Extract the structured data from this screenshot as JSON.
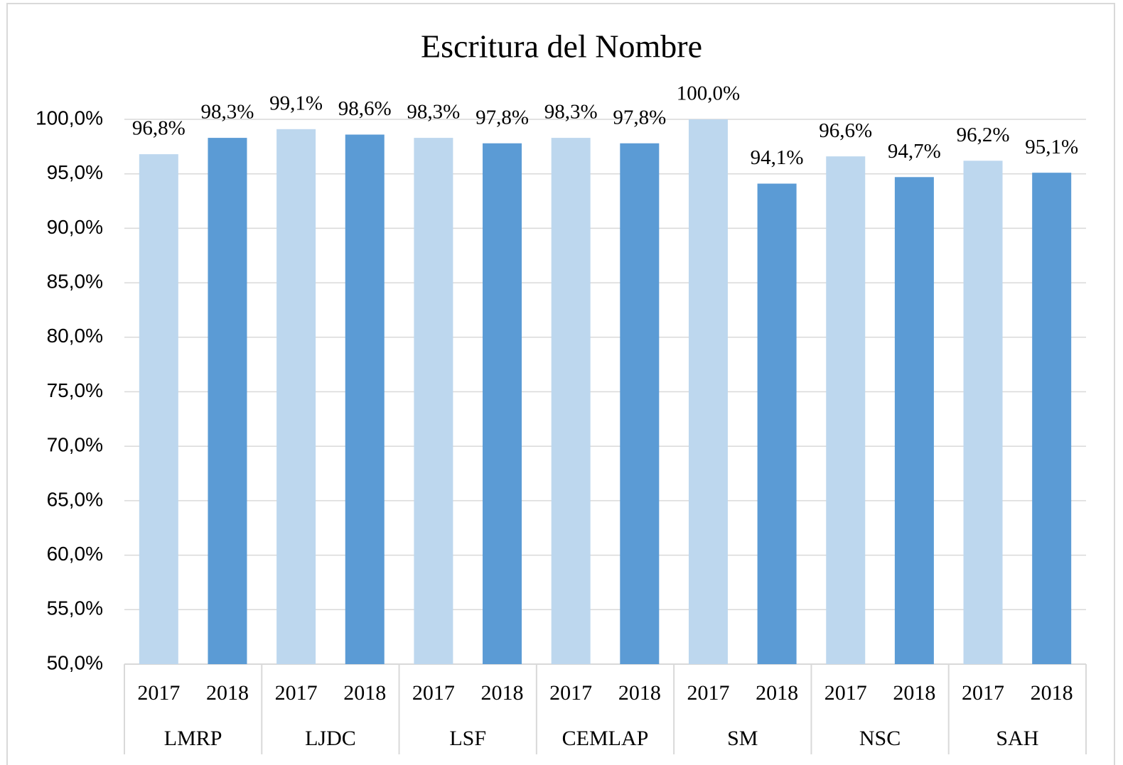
{
  "chart_data": {
    "type": "bar",
    "title": "Escritura del Nombre",
    "categories": [
      "LMRP",
      "LJDC",
      "LSF",
      "CEMLAP",
      "SM",
      "NSC",
      "SAH"
    ],
    "series": [
      {
        "name": "2017",
        "color": "#bdd7ee",
        "values": [
          96.8,
          99.1,
          98.3,
          98.3,
          100.0,
          96.6,
          96.2
        ],
        "value_labels": [
          "96,8%",
          "99,1%",
          "98,3%",
          "98,3%",
          "100,0%",
          "96,6%",
          "96,2%"
        ]
      },
      {
        "name": "2018",
        "color": "#5b9bd5",
        "values": [
          98.3,
          98.6,
          97.8,
          97.8,
          94.1,
          94.7,
          95.1
        ],
        "value_labels": [
          "98,3%",
          "98,6%",
          "97,8%",
          "97,8%",
          "94,1%",
          "94,7%",
          "95,1%"
        ]
      }
    ],
    "ylim": [
      50,
      100
    ],
    "yticks": [
      {
        "value": 50,
        "label": "50,0%"
      },
      {
        "value": 55,
        "label": "55,0%"
      },
      {
        "value": 60,
        "label": "60,0%"
      },
      {
        "value": 65,
        "label": "65,0%"
      },
      {
        "value": 70,
        "label": "70,0%"
      },
      {
        "value": 75,
        "label": "75,0%"
      },
      {
        "value": 80,
        "label": "80,0%"
      },
      {
        "value": 85,
        "label": "85,0%"
      },
      {
        "value": 90,
        "label": "90,0%"
      },
      {
        "value": 95,
        "label": "95,0%"
      },
      {
        "value": 100,
        "label": "100,0%"
      }
    ],
    "grid": true
  }
}
